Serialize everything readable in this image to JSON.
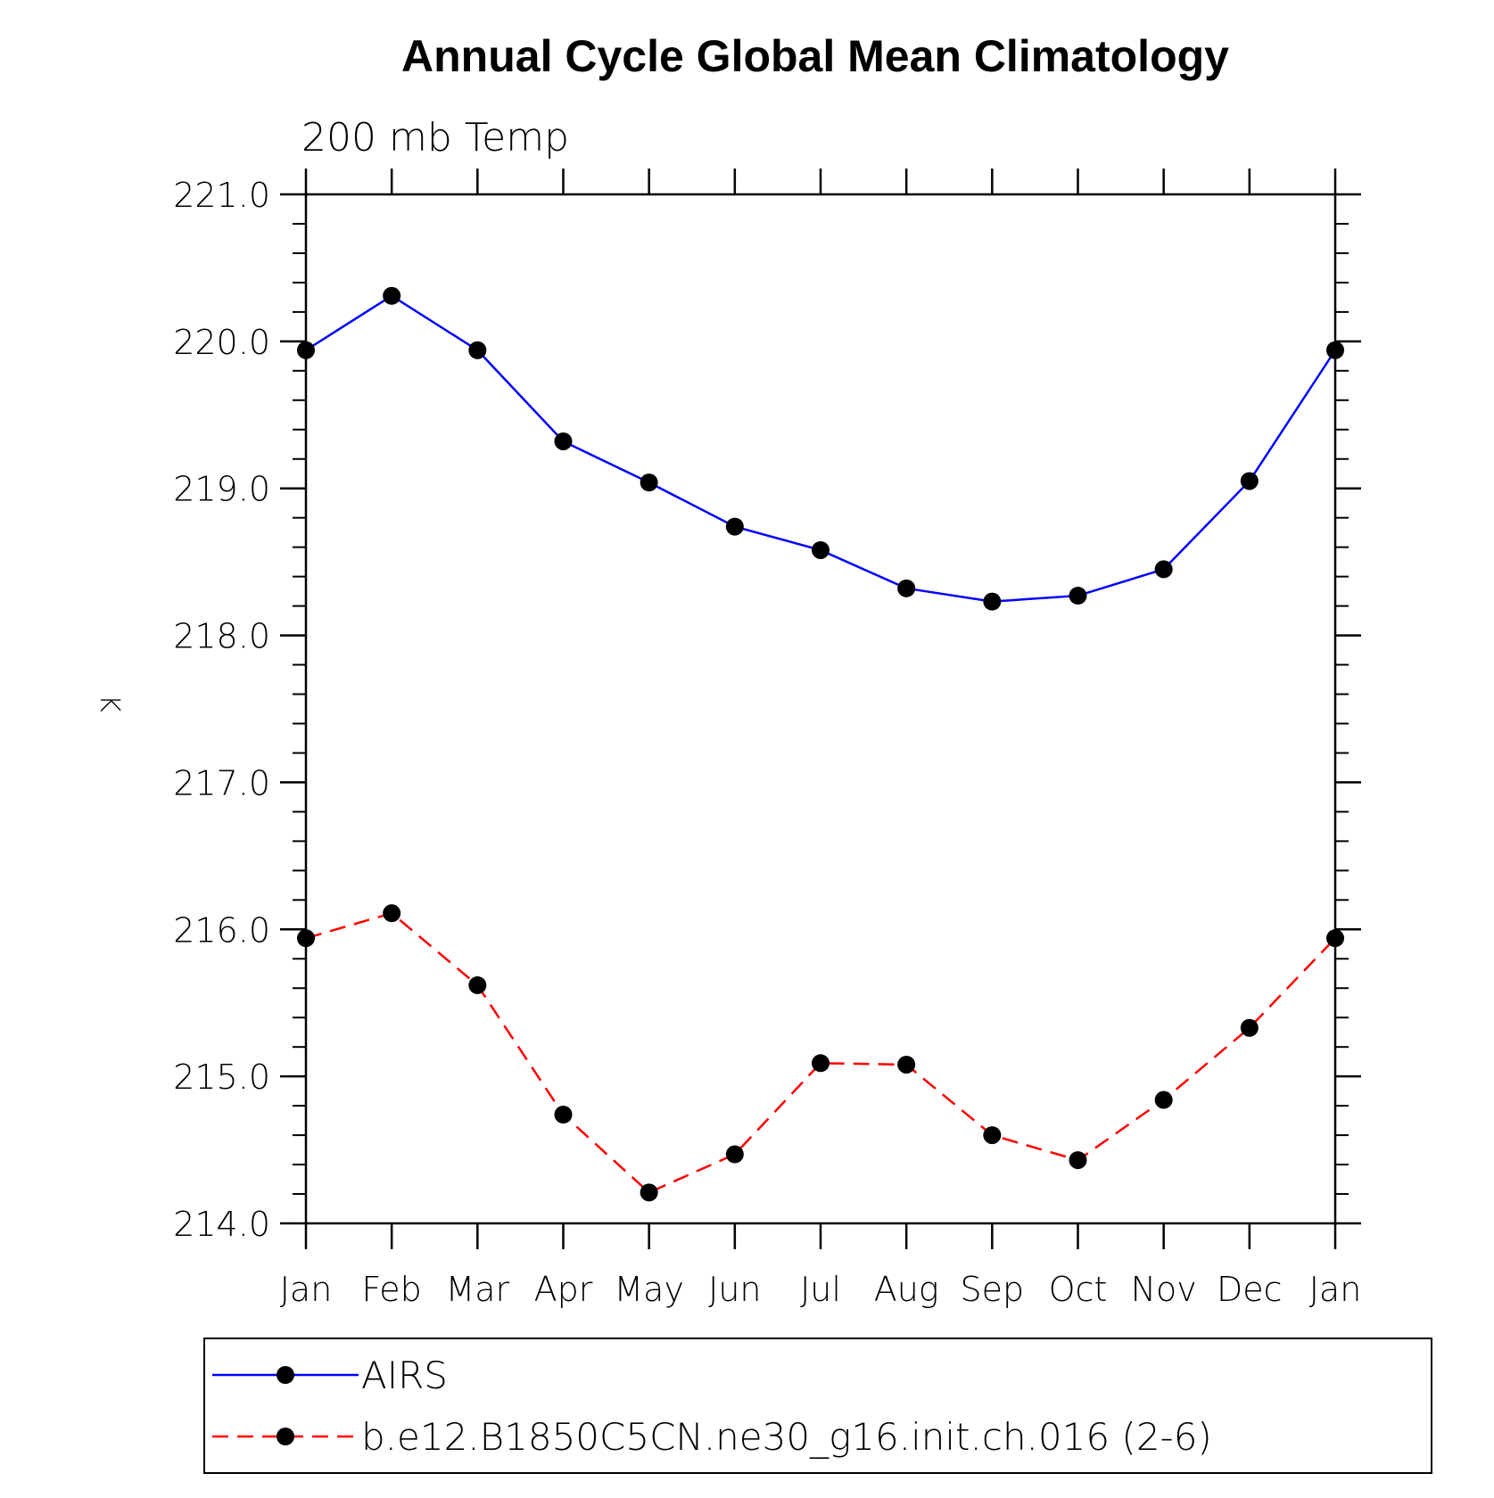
{
  "chart_data": {
    "type": "line",
    "title": "Annual Cycle Global Mean Climatology",
    "subtitle": "200 mb Temp",
    "xlabel": "",
    "ylabel": "K",
    "categories": [
      "Jan",
      "Feb",
      "Mar",
      "Apr",
      "May",
      "Jun",
      "Jul",
      "Aug",
      "Sep",
      "Oct",
      "Nov",
      "Dec",
      "Jan"
    ],
    "ylim": [
      214.0,
      221.0
    ],
    "yticks": [
      "214.0",
      "215.0",
      "216.0",
      "217.0",
      "218.0",
      "219.0",
      "220.0",
      "221.0"
    ],
    "yminor_step": 0.2,
    "grid": false,
    "legend_position": "bottom",
    "series": [
      {
        "name": "AIRS",
        "color": "#0000ff",
        "dash": "solid",
        "marker": "filled-circle",
        "values": [
          219.94,
          220.31,
          219.94,
          219.32,
          219.04,
          218.74,
          218.58,
          218.32,
          218.23,
          218.27,
          218.45,
          219.05,
          219.94
        ]
      },
      {
        "name": "b.e12.B1850C5CN.ne30_g16.init.ch.016 (2-6)",
        "color": "#ff0000",
        "dash": "dashed",
        "marker": "filled-circle",
        "values": [
          215.94,
          216.11,
          215.62,
          214.74,
          214.21,
          214.47,
          215.09,
          215.08,
          214.6,
          214.43,
          214.84,
          215.33,
          215.94
        ]
      }
    ]
  }
}
